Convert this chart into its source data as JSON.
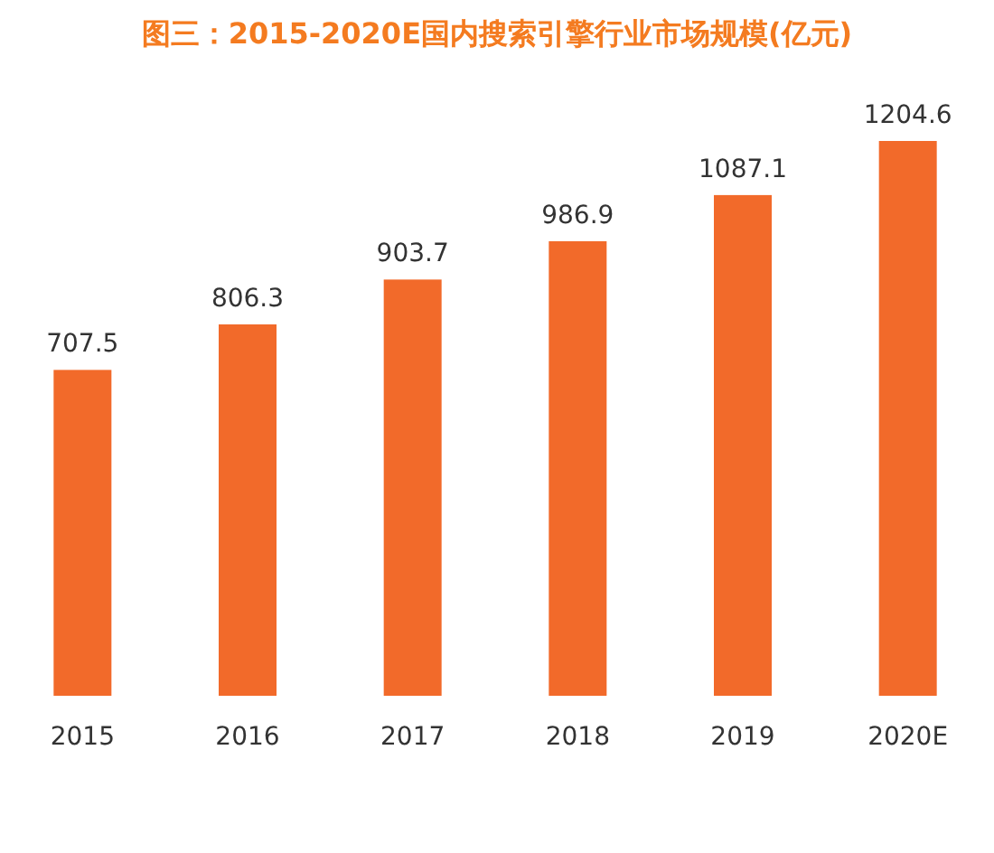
{
  "chart_data": {
    "type": "bar",
    "title": "图三：2015-2020E国内搜索引擎行业市场规模(亿元)",
    "categories": [
      "2015",
      "2016",
      "2017",
      "2018",
      "2019",
      "2020E"
    ],
    "values": [
      707.5,
      806.3,
      903.7,
      986.9,
      1087.1,
      1204.6
    ],
    "color": "#f26a2a",
    "data_labels": true
  }
}
